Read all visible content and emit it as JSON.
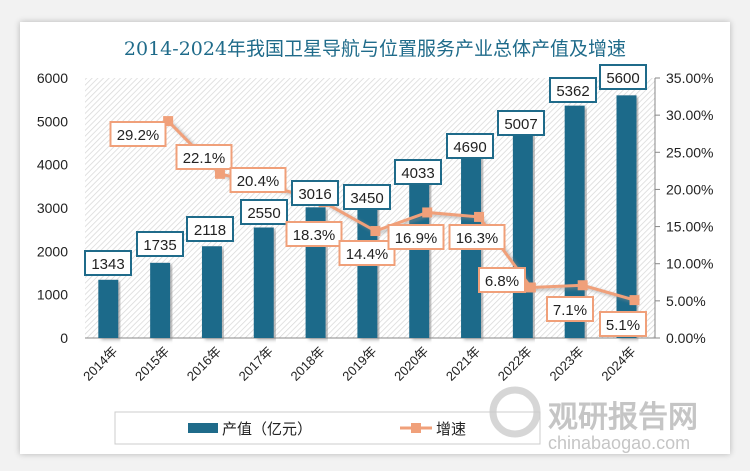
{
  "chart_data": {
    "type": "bar+line",
    "title": "2014-2024年我国卫星导航与位置服务产业总体产值及增速",
    "categories": [
      "2014年",
      "2015年",
      "2016年",
      "2017年",
      "2018年",
      "2019年",
      "2020年",
      "2021年",
      "2022年",
      "2023年",
      "2024年"
    ],
    "series": [
      {
        "name": "产值（亿元）",
        "type": "bar",
        "axis": "left",
        "color": "#1f6b8a",
        "values": [
          1343,
          1735,
          2118,
          2550,
          3016,
          3450,
          4033,
          4690,
          5007,
          5362,
          5600
        ],
        "labels": [
          "1343",
          "1735",
          "2118",
          "2550",
          "3016",
          "3450",
          "4033",
          "4690",
          "5007",
          "5362",
          "5600"
        ]
      },
      {
        "name": "增速",
        "type": "line",
        "axis": "right",
        "color": "#f0a07a",
        "values": [
          null,
          29.2,
          22.1,
          20.4,
          18.3,
          14.4,
          16.9,
          16.3,
          6.8,
          7.1,
          5.1
        ],
        "labels": [
          "",
          "29.2%",
          "22.1%",
          "20.4%",
          "18.3%",
          "14.4%",
          "16.9%",
          "16.3%",
          "6.8%",
          "7.1%",
          "5.1%"
        ]
      }
    ],
    "y_left": {
      "range": [
        0,
        6000
      ],
      "ticks": [
        "0",
        "1000",
        "2000",
        "3000",
        "4000",
        "5000",
        "6000"
      ]
    },
    "y_right": {
      "range": [
        0,
        35
      ],
      "ticks": [
        "0.00%",
        "5.00%",
        "10.00%",
        "15.00%",
        "20.00%",
        "25.00%",
        "30.00%",
        "35.00%"
      ]
    },
    "legend": "bottom",
    "grid": false
  },
  "watermark": {
    "text": "观研报告网",
    "url_text": "chinabaogao.com"
  }
}
